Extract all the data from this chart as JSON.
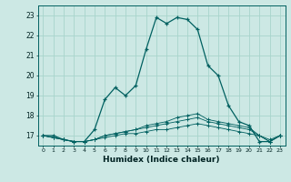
{
  "xlabel": "Humidex (Indice chaleur)",
  "background_color": "#cce8e4",
  "grid_color": "#a8d4cc",
  "line_color": "#006060",
  "xlim": [
    -0.5,
    23.5
  ],
  "ylim": [
    16.5,
    23.5
  ],
  "yticks": [
    17,
    18,
    19,
    20,
    21,
    22,
    23
  ],
  "xticks": [
    0,
    1,
    2,
    3,
    4,
    5,
    6,
    7,
    8,
    9,
    10,
    11,
    12,
    13,
    14,
    15,
    16,
    17,
    18,
    19,
    20,
    21,
    22,
    23
  ],
  "series": [
    [
      17.0,
      17.0,
      16.8,
      16.7,
      16.7,
      17.3,
      18.8,
      19.4,
      19.0,
      19.5,
      21.3,
      22.9,
      22.6,
      22.9,
      22.8,
      22.3,
      20.5,
      20.0,
      18.5,
      17.7,
      17.5,
      16.7,
      16.7,
      17.0
    ],
    [
      17.0,
      16.9,
      16.8,
      16.7,
      16.7,
      16.8,
      17.0,
      17.1,
      17.2,
      17.3,
      17.5,
      17.6,
      17.7,
      17.9,
      18.0,
      18.1,
      17.8,
      17.7,
      17.6,
      17.5,
      17.4,
      17.0,
      16.8,
      17.0
    ],
    [
      17.0,
      16.9,
      16.8,
      16.7,
      16.7,
      16.8,
      17.0,
      17.1,
      17.2,
      17.3,
      17.4,
      17.5,
      17.6,
      17.7,
      17.8,
      17.9,
      17.7,
      17.6,
      17.5,
      17.4,
      17.3,
      17.0,
      16.7,
      17.0
    ],
    [
      17.0,
      16.9,
      16.8,
      16.7,
      16.7,
      16.8,
      16.9,
      17.0,
      17.1,
      17.1,
      17.2,
      17.3,
      17.3,
      17.4,
      17.5,
      17.6,
      17.5,
      17.4,
      17.3,
      17.2,
      17.1,
      17.0,
      16.7,
      17.0
    ]
  ]
}
